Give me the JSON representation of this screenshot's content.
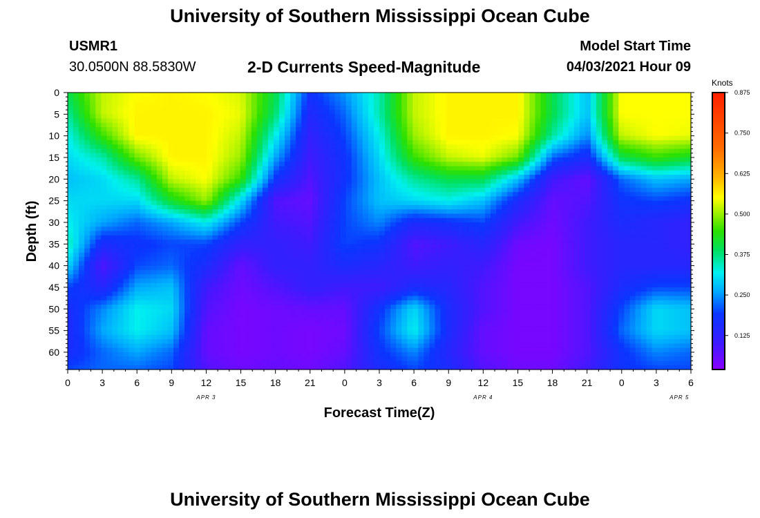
{
  "header": {
    "title": "University of Southern Mississippi Ocean Cube",
    "station": "USMR1",
    "coordinates": "30.0500N  88.5830W",
    "subtitle": "2-D Currents Speed-Magnitude",
    "model_start_label": "Model Start Time",
    "model_start_value": "04/03/2021 Hour 09"
  },
  "footer": {
    "title": "University of Southern Mississippi Ocean Cube"
  },
  "colors": {
    "scale": [
      "#8a00ff",
      "#3a1cff",
      "#0a36ff",
      "#00a8ff",
      "#00f0f0",
      "#00e060",
      "#2ce000",
      "#ffff00",
      "#ffb000",
      "#ff6a00",
      "#ff2000"
    ]
  },
  "chart_data": {
    "type": "heatmap",
    "title": "2-D Currents Speed-Magnitude",
    "xlabel": "Forecast Time(Z)",
    "ylabel": "Depth (ft)",
    "x_tick_labels": [
      "0",
      "3",
      "6",
      "9",
      "12",
      "15",
      "18",
      "21",
      "0",
      "3",
      "6",
      "9",
      "12",
      "15",
      "18",
      "21",
      "0",
      "3",
      "6"
    ],
    "x_range_hours": [
      0,
      54
    ],
    "date_labels": [
      "APR 3",
      "APR 4",
      "APR 5"
    ],
    "y_tick_labels": [
      "0",
      "5",
      "10",
      "15",
      "20",
      "25",
      "30",
      "35",
      "40",
      "45",
      "50",
      "55",
      "60"
    ],
    "ylim": [
      0,
      64
    ],
    "y_inverted": true,
    "colorbar": {
      "unit": "Knots",
      "ticks": [
        "0.875",
        "0.750",
        "0.625",
        "0.500",
        "0.375",
        "0.250",
        "0.125"
      ],
      "range": [
        0.02,
        0.875
      ]
    },
    "x_hours": [
      0,
      3,
      6,
      9,
      12,
      15,
      18,
      21,
      24,
      27,
      30,
      33,
      36,
      39,
      42,
      45,
      48,
      51,
      54
    ],
    "depths_ft": [
      0,
      5,
      10,
      15,
      20,
      25,
      30,
      35,
      40,
      45,
      50,
      55,
      60,
      64
    ],
    "values_knots": [
      [
        0.4,
        0.52,
        0.55,
        0.56,
        0.55,
        0.53,
        0.4,
        0.18,
        0.25,
        0.35,
        0.52,
        0.56,
        0.56,
        0.56,
        0.4,
        0.28,
        0.55,
        0.55,
        0.55
      ],
      [
        0.36,
        0.52,
        0.56,
        0.56,
        0.56,
        0.54,
        0.38,
        0.15,
        0.22,
        0.35,
        0.52,
        0.56,
        0.56,
        0.56,
        0.4,
        0.28,
        0.55,
        0.55,
        0.55
      ],
      [
        0.32,
        0.45,
        0.56,
        0.56,
        0.56,
        0.52,
        0.32,
        0.12,
        0.2,
        0.32,
        0.5,
        0.56,
        0.56,
        0.55,
        0.36,
        0.24,
        0.52,
        0.55,
        0.54
      ],
      [
        0.3,
        0.35,
        0.48,
        0.56,
        0.56,
        0.5,
        0.26,
        0.1,
        0.18,
        0.3,
        0.45,
        0.52,
        0.54,
        0.48,
        0.22,
        0.16,
        0.4,
        0.45,
        0.42
      ],
      [
        0.28,
        0.3,
        0.36,
        0.52,
        0.55,
        0.45,
        0.18,
        0.08,
        0.18,
        0.28,
        0.36,
        0.4,
        0.4,
        0.28,
        0.1,
        0.06,
        0.22,
        0.28,
        0.26
      ],
      [
        0.3,
        0.3,
        0.3,
        0.42,
        0.5,
        0.3,
        0.08,
        0.06,
        0.2,
        0.28,
        0.3,
        0.32,
        0.28,
        0.16,
        0.06,
        0.08,
        0.18,
        0.2,
        0.18
      ],
      [
        0.32,
        0.26,
        0.22,
        0.26,
        0.32,
        0.2,
        0.1,
        0.08,
        0.2,
        0.24,
        0.16,
        0.18,
        0.2,
        0.1,
        0.05,
        0.1,
        0.16,
        0.14,
        0.12
      ],
      [
        0.35,
        0.16,
        0.18,
        0.2,
        0.2,
        0.12,
        0.12,
        0.1,
        0.2,
        0.18,
        0.08,
        0.1,
        0.14,
        0.05,
        0.04,
        0.1,
        0.14,
        0.14,
        0.12
      ],
      [
        0.3,
        0.08,
        0.2,
        0.22,
        0.16,
        0.06,
        0.12,
        0.12,
        0.16,
        0.14,
        0.1,
        0.12,
        0.1,
        0.04,
        0.04,
        0.1,
        0.14,
        0.14,
        0.14
      ],
      [
        0.2,
        0.14,
        0.26,
        0.28,
        0.1,
        0.05,
        0.08,
        0.12,
        0.1,
        0.1,
        0.16,
        0.14,
        0.08,
        0.04,
        0.04,
        0.08,
        0.16,
        0.2,
        0.2
      ],
      [
        0.16,
        0.24,
        0.32,
        0.3,
        0.08,
        0.04,
        0.05,
        0.06,
        0.06,
        0.18,
        0.3,
        0.16,
        0.08,
        0.04,
        0.04,
        0.08,
        0.2,
        0.3,
        0.28
      ],
      [
        0.15,
        0.26,
        0.32,
        0.28,
        0.06,
        0.04,
        0.05,
        0.04,
        0.05,
        0.2,
        0.32,
        0.16,
        0.06,
        0.04,
        0.04,
        0.08,
        0.22,
        0.3,
        0.28
      ],
      [
        0.16,
        0.22,
        0.26,
        0.22,
        0.06,
        0.04,
        0.05,
        0.04,
        0.06,
        0.18,
        0.24,
        0.14,
        0.06,
        0.04,
        0.04,
        0.08,
        0.18,
        0.24,
        0.22
      ],
      [
        0.2,
        0.22,
        0.22,
        0.2,
        0.08,
        0.05,
        0.06,
        0.05,
        0.08,
        0.16,
        0.2,
        0.16,
        0.08,
        0.05,
        0.05,
        0.1,
        0.18,
        0.2,
        0.2
      ]
    ]
  }
}
